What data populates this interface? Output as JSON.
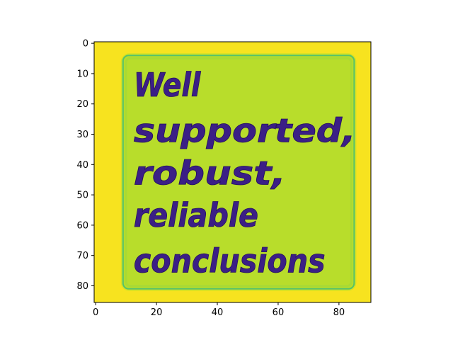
{
  "chart_data": {
    "type": "heatmap",
    "title": "",
    "xlabel": "",
    "ylabel": "",
    "xlim": [
      -0.5,
      90.5
    ],
    "ylim": [
      85.5,
      -0.5
    ],
    "x_ticks": [
      0,
      20,
      40,
      60,
      80
    ],
    "y_ticks": [
      0,
      10,
      20,
      30,
      40,
      50,
      60,
      70,
      80
    ],
    "image_content": {
      "description_text_lines": [
        "Well",
        "supported,",
        "robust,",
        "reliable",
        "conclusions"
      ],
      "note_region": {
        "x0": 9,
        "x1": 85,
        "y0": 4,
        "y1": 81
      }
    },
    "colormap": "viridis",
    "colors": {
      "background": "#f7e31f",
      "note_fill": "#b8dd2b",
      "note_edge": "#55c26b",
      "text": "#3b1f86"
    },
    "grid": false,
    "legend": "none"
  }
}
